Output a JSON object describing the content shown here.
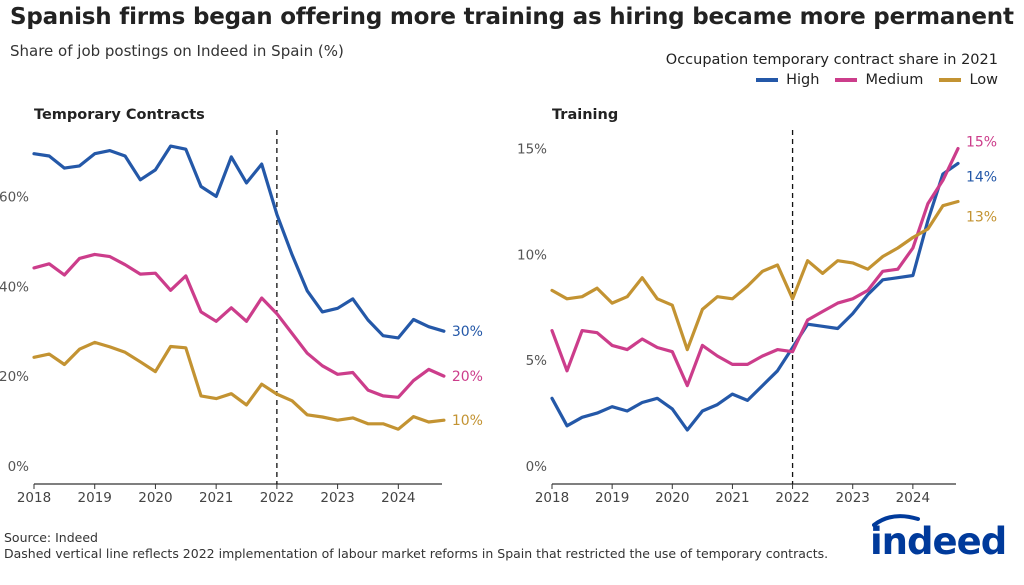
{
  "title": "Spanish firms began offering more training as hiring became more permanent",
  "subtitle": "Share of job postings on Indeed in Spain (%)",
  "legend": {
    "title": "Occupation temporary contract share in 2021",
    "items": [
      {
        "label": "High",
        "color": "#2458a8"
      },
      {
        "label": "Medium",
        "color": "#cc3d8b"
      },
      {
        "label": "Low",
        "color": "#c39332"
      }
    ]
  },
  "footer": {
    "source": "Source: Indeed",
    "note": "Dashed vertical line reflects 2022 implementation of labour market reforms in Spain that restricted the use of temporary contracts."
  },
  "logo": {
    "text": "indeed"
  },
  "chart_data": [
    {
      "type": "line",
      "title": "Temporary Contracts",
      "x": [
        2018.0,
        2018.25,
        2018.5,
        2018.75,
        2019.0,
        2019.25,
        2019.5,
        2019.75,
        2020.0,
        2020.25,
        2020.5,
        2020.75,
        2021.0,
        2021.25,
        2021.5,
        2021.75,
        2022.0,
        2022.25,
        2022.5,
        2022.75,
        2023.0,
        2023.25,
        2023.5,
        2023.75,
        2024.0,
        2024.25,
        2024.5,
        2024.75
      ],
      "xlim": [
        2018.0,
        2024.95
      ],
      "ylim": [
        0,
        73
      ],
      "yticks": [
        0,
        20,
        40,
        60
      ],
      "ytick_labels": [
        "0%",
        "20%",
        "40%",
        "60%"
      ],
      "xticks": [
        2018,
        2019,
        2020,
        2021,
        2022,
        2023,
        2024
      ],
      "xtick_labels": [
        "2018",
        "2019",
        "2020",
        "2021",
        "2022",
        "2023",
        "2024"
      ],
      "reference_line_x": 2022,
      "series": [
        {
          "name": "High",
          "end_label": "30%",
          "values": [
            69.5,
            69.0,
            66.3,
            66.8,
            69.5,
            70.2,
            69.0,
            63.7,
            65.9,
            71.2,
            70.5,
            62.2,
            60.0,
            68.8,
            63.0,
            67.2,
            56.0,
            47.0,
            39.0,
            34.3,
            35.1,
            37.2,
            32.5,
            29.0,
            28.5,
            32.6,
            31.0,
            30.0
          ]
        },
        {
          "name": "Medium",
          "end_label": "20%",
          "values": [
            44.1,
            45.0,
            42.5,
            46.2,
            47.1,
            46.6,
            44.8,
            42.7,
            42.9,
            39.1,
            42.3,
            34.3,
            32.2,
            35.2,
            32.2,
            37.4,
            33.9,
            29.5,
            25.1,
            22.3,
            20.4,
            20.8,
            16.9,
            15.6,
            15.3,
            19.0,
            21.5,
            20.0
          ]
        },
        {
          "name": "Low",
          "end_label": "10%",
          "values": [
            24.2,
            24.9,
            22.6,
            26.0,
            27.5,
            26.5,
            25.3,
            23.2,
            21.0,
            26.6,
            26.3,
            15.6,
            15.0,
            16.1,
            13.6,
            18.2,
            16.0,
            14.5,
            11.4,
            10.9,
            10.2,
            10.7,
            9.4,
            9.4,
            8.2,
            11.0,
            9.8,
            10.2
          ]
        }
      ]
    },
    {
      "type": "line",
      "title": "Training",
      "x": [
        2018.0,
        2018.25,
        2018.5,
        2018.75,
        2019.0,
        2019.25,
        2019.5,
        2019.75,
        2020.0,
        2020.25,
        2020.5,
        2020.75,
        2021.0,
        2021.25,
        2021.5,
        2021.75,
        2022.0,
        2022.25,
        2022.5,
        2022.75,
        2023.0,
        2023.25,
        2023.5,
        2023.75,
        2024.0,
        2024.25,
        2024.5,
        2024.75
      ],
      "xlim": [
        2018.0,
        2024.95
      ],
      "ylim": [
        0,
        15.5
      ],
      "yticks": [
        0,
        5,
        10,
        15
      ],
      "ytick_labels": [
        "0%",
        "5%",
        "10%",
        "15%"
      ],
      "xticks": [
        2018,
        2019,
        2020,
        2021,
        2022,
        2023,
        2024
      ],
      "xtick_labels": [
        "2018",
        "2019",
        "2020",
        "2021",
        "2022",
        "2023",
        "2024"
      ],
      "reference_line_x": 2022,
      "series": [
        {
          "name": "High",
          "end_label": "14%",
          "values": [
            3.2,
            1.9,
            2.3,
            2.5,
            2.8,
            2.6,
            3.0,
            3.2,
            2.7,
            1.7,
            2.6,
            2.9,
            3.4,
            3.1,
            3.8,
            4.5,
            5.6,
            6.7,
            6.6,
            6.5,
            7.2,
            8.1,
            8.8,
            8.9,
            9.0,
            11.6,
            13.8,
            14.3
          ]
        },
        {
          "name": "Medium",
          "end_label": "15%",
          "values": [
            6.4,
            4.5,
            6.4,
            6.3,
            5.7,
            5.5,
            6.0,
            5.6,
            5.4,
            3.8,
            5.7,
            5.2,
            4.8,
            4.8,
            5.2,
            5.5,
            5.4,
            6.9,
            7.3,
            7.7,
            7.9,
            8.3,
            9.2,
            9.3,
            10.3,
            12.4,
            13.5,
            15.0
          ]
        },
        {
          "name": "Low",
          "end_label": "13%",
          "values": [
            8.3,
            7.9,
            8.0,
            8.4,
            7.7,
            8.0,
            8.9,
            7.9,
            7.6,
            5.5,
            7.4,
            8.0,
            7.9,
            8.5,
            9.2,
            9.5,
            7.9,
            9.7,
            9.1,
            9.7,
            9.6,
            9.3,
            9.9,
            10.3,
            10.8,
            11.2,
            12.3,
            12.5
          ]
        }
      ]
    }
  ]
}
